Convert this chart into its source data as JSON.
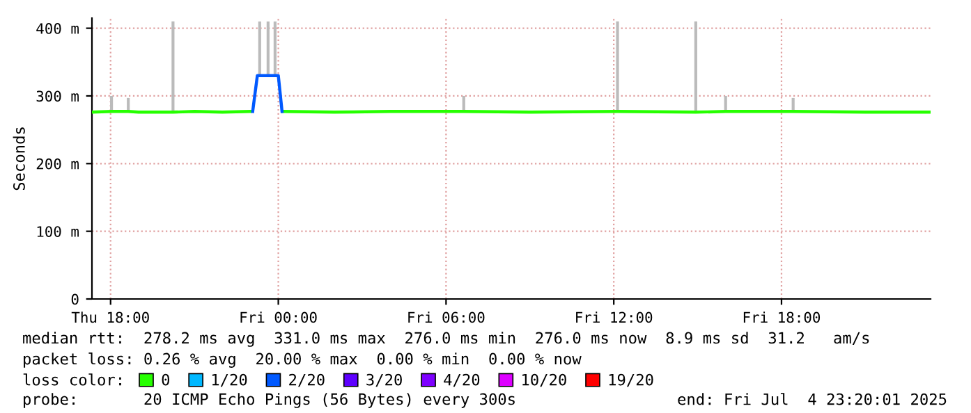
{
  "chart_data": {
    "type": "line",
    "ylabel": "Seconds",
    "xlim": [
      "2025-07-03T17:20",
      "2025-07-04T23:20"
    ],
    "xticks": [
      {
        "value": "2025-07-03T18:00",
        "label": "Thu 18:00"
      },
      {
        "value": "2025-07-04T00:00",
        "label": "Fri 00:00"
      },
      {
        "value": "2025-07-04T06:00",
        "label": "Fri 06:00"
      },
      {
        "value": "2025-07-04T12:00",
        "label": "Fri 12:00"
      },
      {
        "value": "2025-07-04T18:00",
        "label": "Fri 18:00"
      }
    ],
    "ylim": [
      0,
      415
    ],
    "yticks": [
      0,
      {
        "value": 100,
        "label": "100 m"
      },
      {
        "value": 200,
        "label": "200 m"
      },
      {
        "value": 300,
        "label": "300 m"
      },
      {
        "value": 400,
        "label": "400 m"
      }
    ],
    "grid": true,
    "marker": "none",
    "line_style": "solid",
    "legend": "bottom",
    "legend_title": "loss color:",
    "series": [
      {
        "name": "0",
        "color": "#26ff00",
        "x": [
          "2025-07-03T17:20",
          "2025-07-03T18:02",
          "2025-07-03T18:38",
          "2025-07-03T19:00",
          "2025-07-03T20:14",
          "2025-07-03T21:00",
          "2025-07-03T22:00",
          "2025-07-03T23:00",
          "2025-07-03T23:30",
          "2025-07-04T00:10",
          "2025-07-04T02:00",
          "2025-07-04T04:00",
          "2025-07-04T06:38",
          "2025-07-04T09:00",
          "2025-07-04T12:08",
          "2025-07-04T14:56",
          "2025-07-04T16:00",
          "2025-07-04T18:25",
          "2025-07-04T21:00",
          "2025-07-04T23:20"
        ],
        "values": [
          276,
          277,
          277,
          276,
          276,
          277,
          276,
          277,
          null,
          277,
          276,
          277,
          277,
          276,
          277,
          276,
          277,
          277,
          276,
          276
        ],
        "errors": [
          null,
          [
            276,
            300
          ],
          [
            277,
            297
          ],
          null,
          [
            276,
            410
          ],
          null,
          null,
          null,
          null,
          null,
          null,
          null,
          [
            277,
            300
          ],
          null,
          [
            277,
            410
          ],
          [
            276,
            410
          ],
          [
            277,
            300
          ],
          [
            277,
            297
          ],
          null,
          null
        ]
      },
      {
        "name": "1/20",
        "color": "#00b8ff"
      },
      {
        "name": "2/20",
        "color": "#0059ff",
        "x": [
          "2025-07-03T23:05",
          "2025-07-03T23:15",
          "2025-07-03T23:20",
          "2025-07-03T23:38",
          "2025-07-03T23:53",
          "2025-07-04T00:00",
          "2025-07-04T00:08"
        ],
        "values": [
          277,
          330,
          330,
          330,
          330,
          330,
          277
        ],
        "errors": [
          null,
          null,
          [
            330,
            410
          ],
          [
            330,
            410
          ],
          [
            330,
            410
          ],
          null,
          null
        ]
      },
      {
        "name": "3/20",
        "color": "#5e00ff"
      },
      {
        "name": "4/20",
        "color": "#7e00ff"
      },
      {
        "name": "10/20",
        "color": "#dd00ff"
      },
      {
        "name": "19/20",
        "color": "#ff0000"
      }
    ],
    "annotations": [
      "median rtt:  278.2 ms avg  331.0 ms max  276.0 ms min  276.0 ms now  8.9 ms sd  31.2   am/s",
      "packet loss: 0.26 % avg  20.00 % max  0.00 % min  0.00 % now",
      "probe:       20 ICMP Echo Pings (56 Bytes) every 300s",
      "end: Fri Jul  4 23:20:01 2025"
    ]
  }
}
